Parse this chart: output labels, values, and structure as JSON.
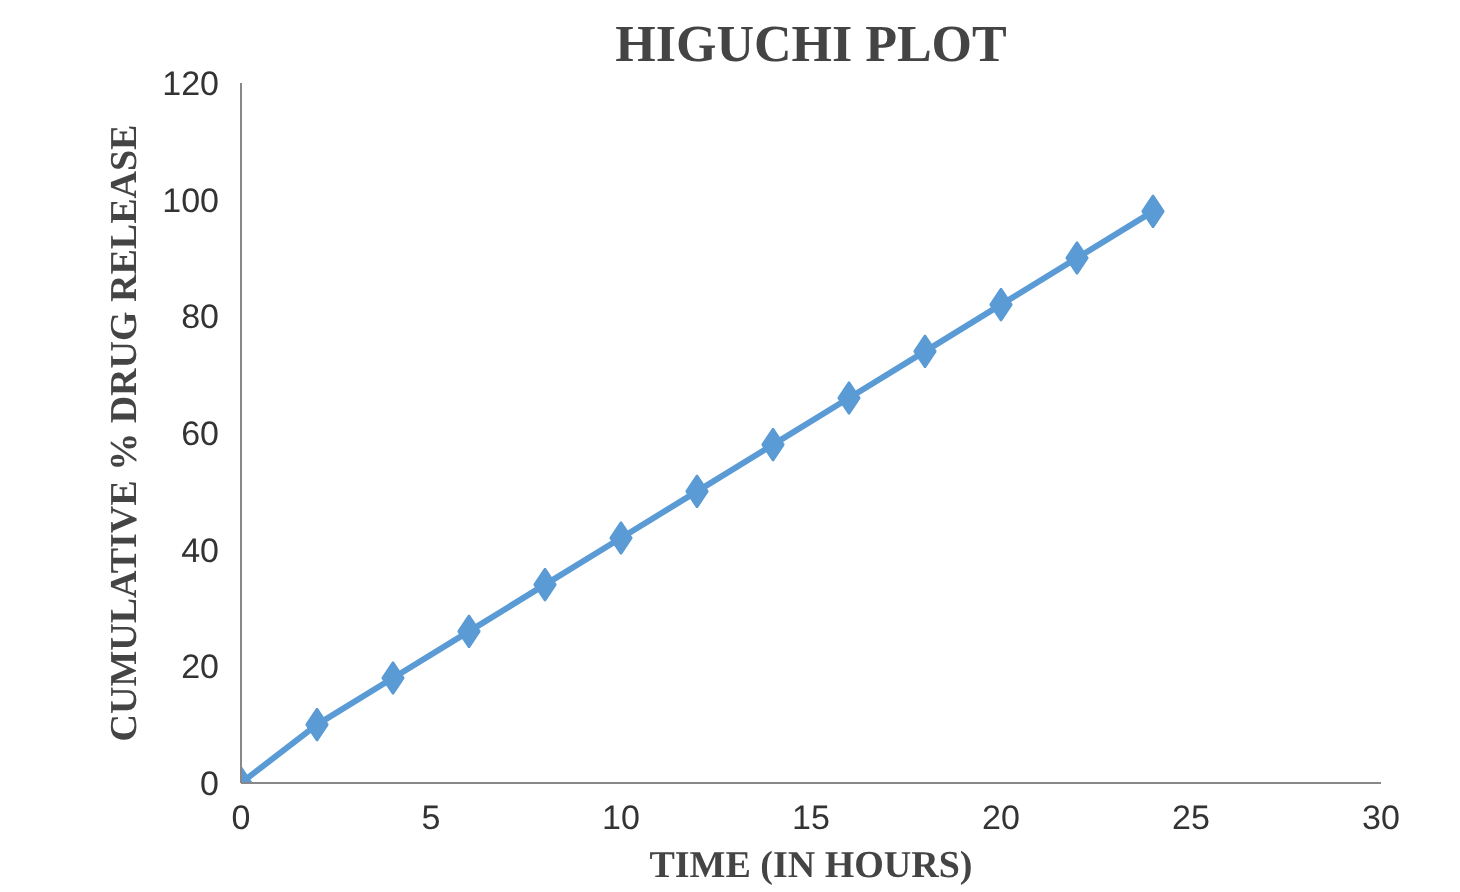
{
  "chart_data": {
    "type": "line",
    "title": "HIGUCHI PLOT",
    "xlabel": "TIME (IN HOURS)",
    "ylabel": "CUMULATIVE % DRUG RELEASE",
    "x": [
      0,
      2,
      4,
      6,
      8,
      10,
      12,
      14,
      16,
      18,
      20,
      22,
      24
    ],
    "series": [
      {
        "color": "#5b9bd5",
        "values": [
          0,
          10,
          18,
          26,
          34,
          42,
          50,
          58,
          66,
          74,
          82,
          90,
          98
        ]
      }
    ],
    "xlim": [
      0,
      30
    ],
    "xticks": [
      0,
      5,
      10,
      15,
      20,
      25,
      30
    ],
    "ylim": [
      0,
      120
    ],
    "yticks": [
      0,
      20,
      40,
      60,
      80,
      100,
      120
    ],
    "grid": false,
    "marker": "diamond",
    "line_style": "solid"
  }
}
